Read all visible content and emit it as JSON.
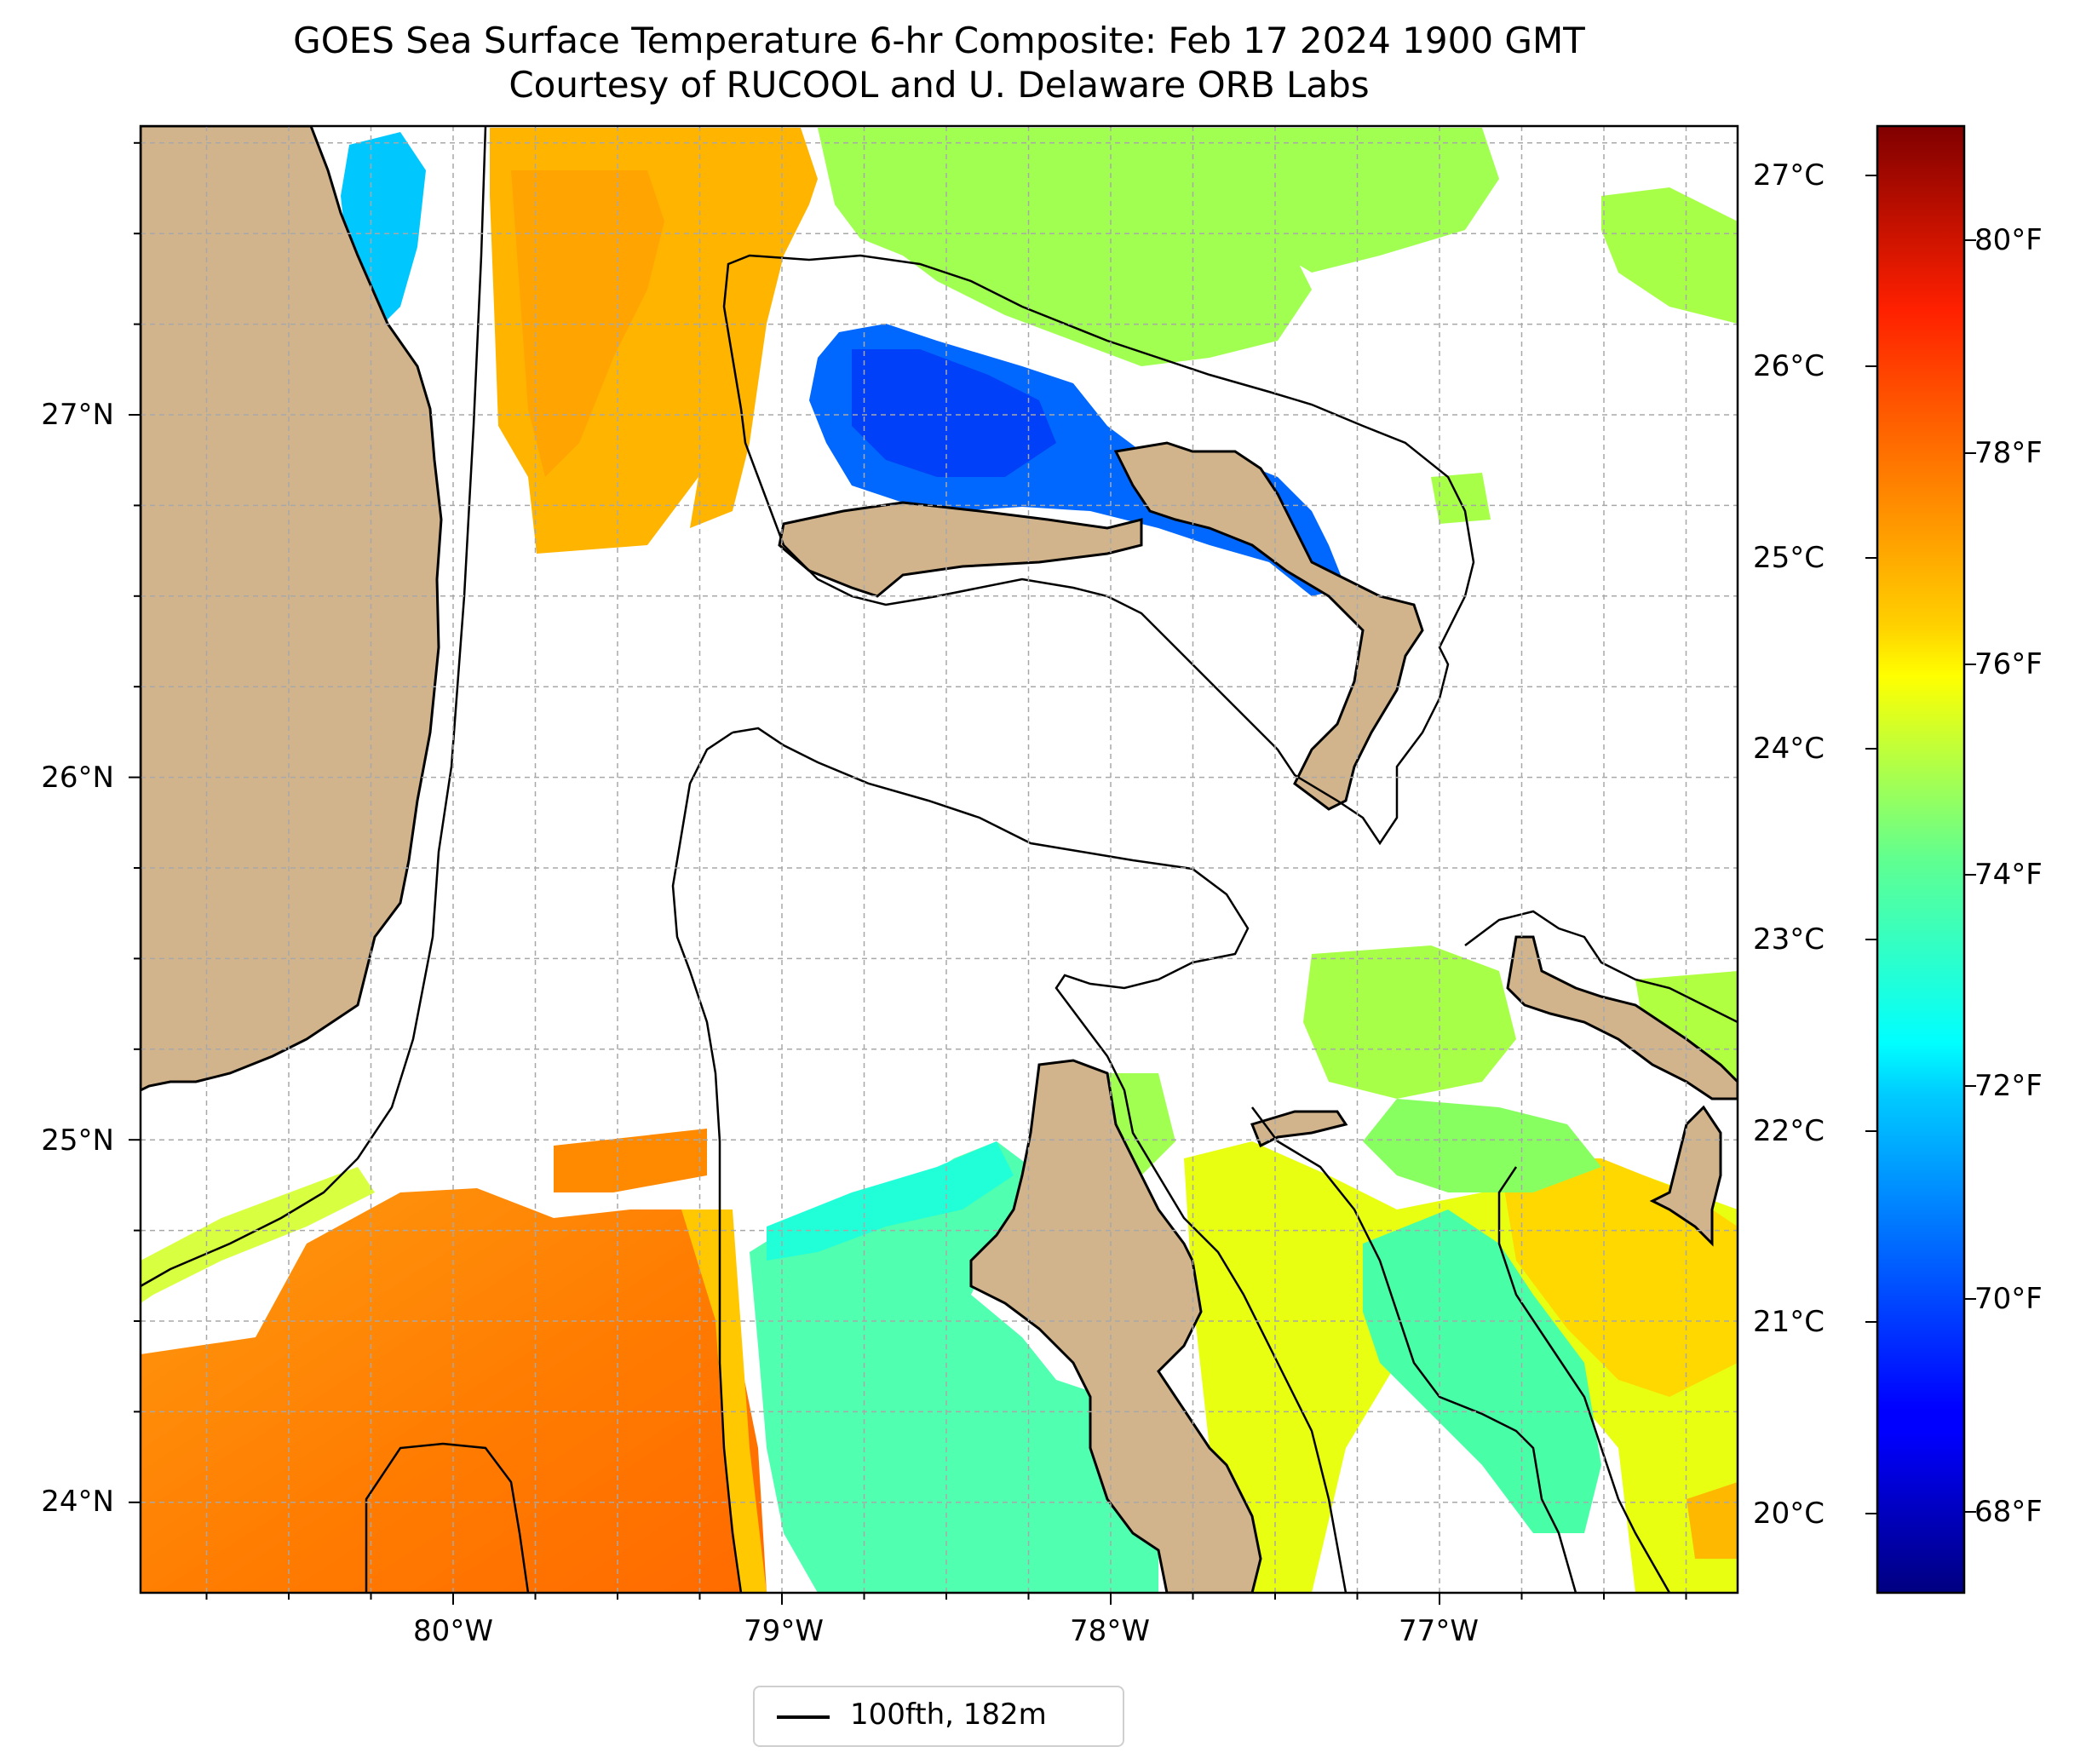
{
  "title": "GOES Sea Surface Temperature 6-hr Composite: Feb 17 2024 1900 GMT",
  "subtitle": "Courtesy of RUCOOL and U. Delaware ORB Labs",
  "lat_labels": [
    "27°N",
    "26°N",
    "25°N",
    "24°N"
  ],
  "lon_labels": [
    "80°W",
    "79°W",
    "78°W",
    "77°W"
  ],
  "colorbar": {
    "celsius_labels": [
      "27°C",
      "26°C",
      "25°C",
      "24°C",
      "23°C",
      "22°C",
      "21°C",
      "20°C"
    ],
    "fahrenheit_labels": [
      "80°F",
      "78°F",
      "76°F",
      "74°F",
      "72°F",
      "70°F",
      "68°F"
    ],
    "colormap": "jet",
    "range_f": [
      67.0,
      81.5
    ]
  },
  "legend": {
    "label": "100fth, 182m"
  },
  "colors": {
    "land": "#d2b48c",
    "lake": "#9ab8e0",
    "no_data": "#ffffff",
    "warm_orange": "#ff8c00",
    "amber": "#ffb400",
    "yellow": "#e6ff14",
    "light_green": "#a0ff50",
    "cyan_green": "#40ffb8",
    "cyan": "#00e0ff",
    "blue": "#0050ff",
    "contour": "#000000"
  }
}
